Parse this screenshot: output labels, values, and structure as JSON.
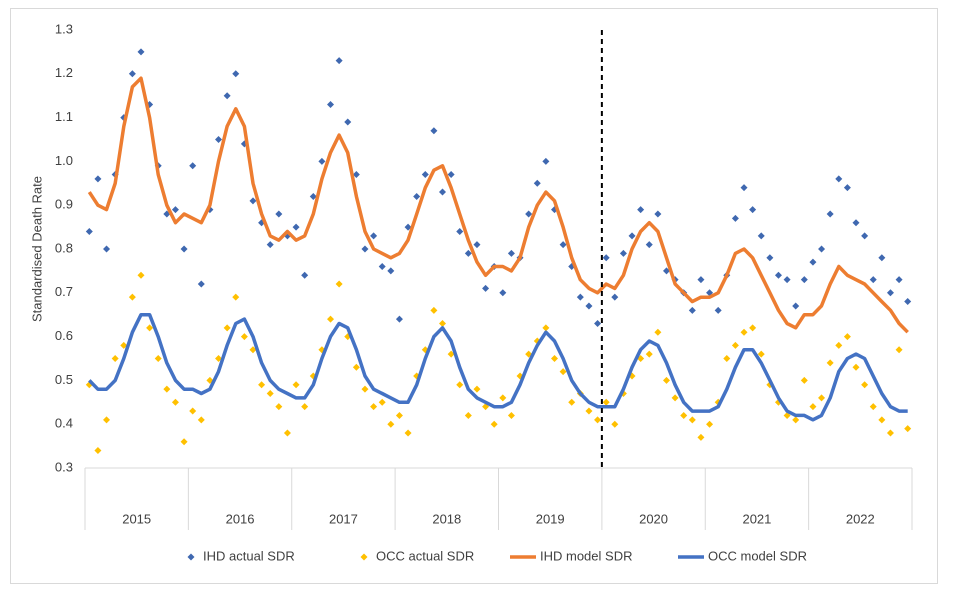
{
  "chart_data": {
    "type": "line",
    "y_label": "Standardised Death Rate",
    "categories": [
      "2015",
      "2016",
      "2017",
      "2018",
      "2019",
      "2020",
      "2021",
      "2022"
    ],
    "ylim": [
      0.3,
      1.3
    ],
    "yticks": [
      0.3,
      0.4,
      0.5,
      0.6,
      0.7,
      0.8,
      0.9,
      {
        "value": 1.0,
        "label": "1.0"
      },
      1.1,
      1.2,
      1.3
    ],
    "grid": false,
    "legend": "bottom",
    "series": [
      {
        "name": "IHD actual SDR",
        "color": "#3f68b0",
        "mark": "diamond",
        "values": [
          [
            0.84,
            0.96,
            0.8,
            0.97,
            1.1,
            1.2,
            1.25,
            1.13,
            0.99,
            0.88,
            0.89,
            0.8
          ],
          [
            0.99,
            0.72,
            0.89,
            1.05,
            1.15,
            1.2,
            1.04,
            0.91,
            0.86,
            0.81,
            0.88,
            0.83
          ],
          [
            0.85,
            0.74,
            0.92,
            1.0,
            1.13,
            1.23,
            1.09,
            0.97,
            0.8,
            0.83,
            0.76,
            0.75
          ],
          [
            0.64,
            0.85,
            0.92,
            0.97,
            1.07,
            0.93,
            0.97,
            0.84,
            0.79,
            0.81,
            0.71,
            0.76
          ],
          [
            0.7,
            0.79,
            0.78,
            0.88,
            0.95,
            1.0,
            0.89,
            0.81,
            0.76,
            0.69,
            0.67,
            0.63
          ],
          [
            0.78,
            0.69,
            0.79,
            0.83,
            0.89,
            0.81,
            0.88,
            0.75,
            0.73,
            0.7,
            0.66,
            0.73
          ],
          [
            0.7,
            0.66,
            0.74,
            0.87,
            0.94,
            0.89,
            0.83,
            0.78,
            0.74,
            0.73,
            0.67,
            0.73
          ],
          [
            0.77,
            0.8,
            0.88,
            0.96,
            0.94,
            0.86,
            0.83,
            0.73,
            0.78,
            0.7,
            0.73,
            0.68
          ]
        ]
      },
      {
        "name": "OCC actual SDR",
        "color": "#ffc000",
        "mark": "diamond",
        "values": [
          [
            0.49,
            0.34,
            0.41,
            0.55,
            0.58,
            0.69,
            0.74,
            0.62,
            0.55,
            0.48,
            0.45,
            0.36
          ],
          [
            0.43,
            0.41,
            0.5,
            0.55,
            0.62,
            0.69,
            0.6,
            0.57,
            0.49,
            0.47,
            0.44,
            0.38
          ],
          [
            0.49,
            0.44,
            0.51,
            0.57,
            0.64,
            0.72,
            0.6,
            0.53,
            0.48,
            0.44,
            0.45,
            0.4
          ],
          [
            0.42,
            0.38,
            0.51,
            0.57,
            0.66,
            0.63,
            0.56,
            0.49,
            0.42,
            0.48,
            0.44,
            0.4
          ],
          [
            0.46,
            0.42,
            0.51,
            0.56,
            0.59,
            0.62,
            0.55,
            0.52,
            0.45,
            0.47,
            0.43,
            0.41
          ],
          [
            0.45,
            0.4,
            0.47,
            0.51,
            0.55,
            0.56,
            0.61,
            0.5,
            0.46,
            0.42,
            0.41,
            0.37
          ],
          [
            0.4,
            0.45,
            0.55,
            0.58,
            0.61,
            0.62,
            0.56,
            0.49,
            0.45,
            0.42,
            0.41,
            0.5
          ],
          [
            0.44,
            0.46,
            0.54,
            0.58,
            0.6,
            0.53,
            0.49,
            0.44,
            0.41,
            0.38,
            0.57,
            0.39
          ]
        ]
      },
      {
        "name": "IHD model SDR",
        "color": "#ed7d31",
        "mark": "line",
        "values": [
          [
            0.93,
            0.9,
            0.89,
            0.95,
            1.08,
            1.17,
            1.19,
            1.1,
            0.97,
            0.9,
            0.86,
            0.88
          ],
          [
            0.87,
            0.86,
            0.9,
            1.0,
            1.08,
            1.12,
            1.08,
            0.95,
            0.88,
            0.83,
            0.82,
            0.84
          ],
          [
            0.82,
            0.83,
            0.88,
            0.96,
            1.02,
            1.06,
            1.02,
            0.92,
            0.84,
            0.8,
            0.79,
            0.78
          ],
          [
            0.79,
            0.82,
            0.88,
            0.94,
            0.98,
            0.99,
            0.94,
            0.88,
            0.82,
            0.77,
            0.74,
            0.76
          ],
          [
            0.76,
            0.75,
            0.78,
            0.85,
            0.9,
            0.93,
            0.91,
            0.85,
            0.78,
            0.73,
            0.71,
            0.7
          ],
          [
            0.72,
            0.71,
            0.74,
            0.8,
            0.84,
            0.86,
            0.84,
            0.78,
            0.72,
            0.7,
            0.68,
            0.69
          ],
          [
            0.69,
            0.7,
            0.74,
            0.79,
            0.8,
            0.78,
            0.74,
            0.7,
            0.66,
            0.63,
            0.62,
            0.65
          ],
          [
            0.65,
            0.67,
            0.72,
            0.76,
            0.74,
            0.73,
            0.72,
            0.7,
            0.68,
            0.66,
            0.63,
            0.61
          ]
        ]
      },
      {
        "name": "OCC model SDR",
        "color": "#4472c4",
        "mark": "line",
        "values": [
          [
            0.5,
            0.48,
            0.48,
            0.5,
            0.55,
            0.61,
            0.65,
            0.65,
            0.6,
            0.54,
            0.5,
            0.48
          ],
          [
            0.48,
            0.47,
            0.48,
            0.52,
            0.58,
            0.63,
            0.64,
            0.6,
            0.54,
            0.5,
            0.48,
            0.47
          ],
          [
            0.46,
            0.46,
            0.49,
            0.55,
            0.6,
            0.63,
            0.62,
            0.57,
            0.51,
            0.48,
            0.47,
            0.46
          ],
          [
            0.45,
            0.45,
            0.49,
            0.55,
            0.6,
            0.62,
            0.59,
            0.53,
            0.48,
            0.46,
            0.45,
            0.44
          ],
          [
            0.44,
            0.45,
            0.49,
            0.54,
            0.58,
            0.61,
            0.59,
            0.55,
            0.5,
            0.47,
            0.45,
            0.44
          ],
          [
            0.44,
            0.44,
            0.48,
            0.53,
            0.57,
            0.59,
            0.58,
            0.54,
            0.49,
            0.45,
            0.43,
            0.43
          ],
          [
            0.43,
            0.44,
            0.48,
            0.53,
            0.57,
            0.57,
            0.54,
            0.5,
            0.46,
            0.43,
            0.42,
            0.42
          ],
          [
            0.41,
            0.42,
            0.46,
            0.52,
            0.55,
            0.56,
            0.55,
            0.51,
            0.47,
            0.44,
            0.43,
            0.43
          ]
        ]
      }
    ]
  }
}
